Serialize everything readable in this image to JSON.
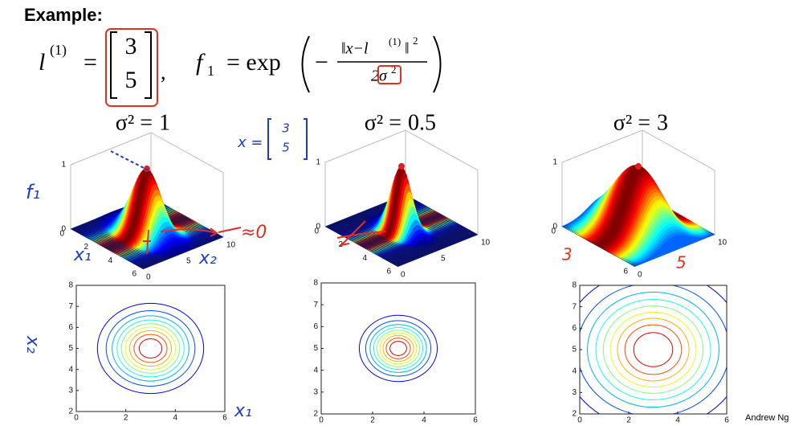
{
  "title": "Example:",
  "formula": {
    "l": "l",
    "l_sup": "(1)",
    "eq": "=",
    "vector": [
      "3",
      "5"
    ],
    "f": "f",
    "f_sub": "1",
    "rhs": "= exp",
    "minus": "−",
    "numerator": "‖x−l",
    "num_sup": "(1)",
    "num_end": "‖",
    "num_sq": "2",
    "denominator": "2σ",
    "den_sup": "2"
  },
  "panels": [
    {
      "sigma_label": "σ² =",
      "sigma2": 1,
      "surface": {
        "z_ticks": [
          0,
          1
        ],
        "x1_ticks": [
          0,
          2,
          4,
          6
        ],
        "x2_ticks": [
          0,
          5,
          10
        ]
      },
      "contour": {
        "xlim": [
          0,
          6
        ],
        "ylim": [
          2,
          8
        ],
        "xticks": [
          0,
          2,
          4,
          6
        ],
        "yticks": [
          2,
          3,
          4,
          5,
          6,
          7,
          8
        ]
      }
    },
    {
      "sigma_label": "σ² =",
      "sigma2": 0.5,
      "surface": {
        "z_ticks": [
          0,
          1
        ],
        "x1_ticks": [
          0,
          2,
          4,
          6
        ],
        "x2_ticks": [
          0,
          5,
          10
        ]
      },
      "contour": {
        "xlim": [
          0,
          6
        ],
        "ylim": [
          2,
          8
        ],
        "xticks": [
          0,
          2,
          4,
          6
        ],
        "yticks": [
          2,
          3,
          4,
          5,
          6,
          7,
          8
        ]
      }
    },
    {
      "sigma_label": "σ² =",
      "sigma2": 3,
      "surface": {
        "z_ticks": [
          0,
          1
        ],
        "x1_ticks": [
          0,
          6
        ],
        "x2_ticks": [
          0,
          10
        ]
      },
      "contour": {
        "xlim": [
          0,
          6
        ],
        "ylim": [
          2,
          8
        ],
        "xticks": [
          0,
          2,
          4,
          6
        ],
        "yticks": [
          2,
          3,
          4,
          5,
          6,
          7,
          8
        ]
      }
    }
  ],
  "annotations": {
    "x_eq": "x =",
    "x_vec": [
      "3",
      "5"
    ],
    "f1": "f₁",
    "p1_x1": "x₁",
    "p1_x2": "x₂",
    "approx": "≈0",
    "c_x2": "x₂",
    "c_x1": "x₁",
    "p3_a": "3",
    "p3_b": "5"
  },
  "footer": "Andrew Ng"
}
